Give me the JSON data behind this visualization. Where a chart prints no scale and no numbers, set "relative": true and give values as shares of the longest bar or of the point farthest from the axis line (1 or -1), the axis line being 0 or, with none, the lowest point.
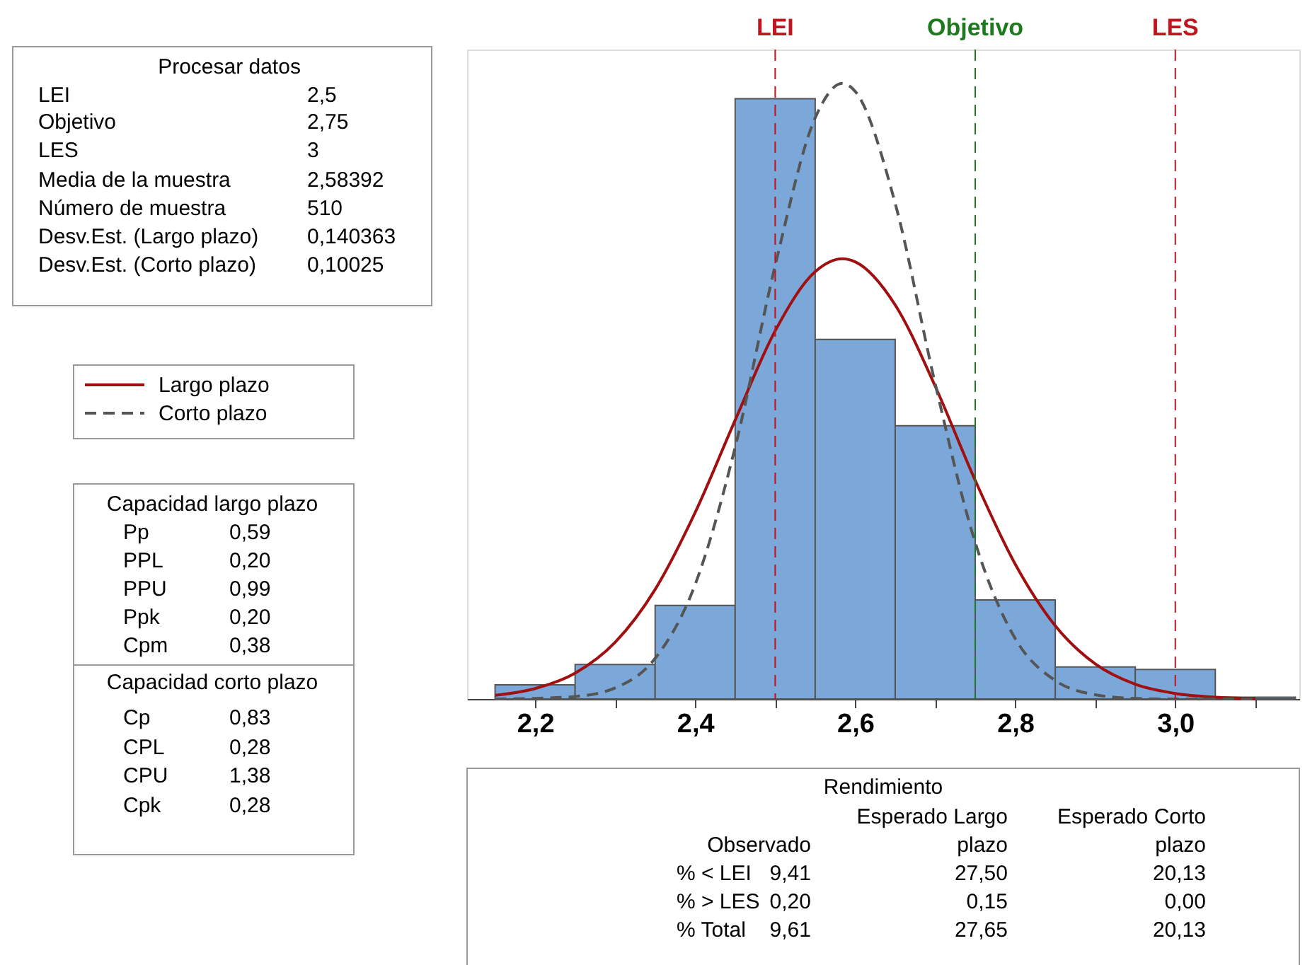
{
  "chart_data": {
    "type": "histogram",
    "relative": true,
    "bins": [
      2.15,
      2.25,
      2.35,
      2.45,
      2.55,
      2.65,
      2.75,
      2.85,
      2.95,
      3.05,
      3.15
    ],
    "values": [
      0.023,
      0.056,
      0.152,
      0.975,
      0.584,
      0.444,
      0.161,
      0.052,
      0.048,
      0.003
    ],
    "color": "#7ba7d9",
    "series": [
      {
        "name": "Largo plazo",
        "type": "line",
        "line_style": "solid",
        "color": "#a01010",
        "x": [
          2.15,
          2.2,
          2.25,
          2.3,
          2.35,
          2.4,
          2.45,
          2.5,
          2.55,
          2.584,
          2.6,
          2.65,
          2.7,
          2.75,
          2.8,
          2.85,
          2.9,
          2.95,
          3.0,
          3.05,
          3.1
        ],
        "values": [
          0.006,
          0.017,
          0.042,
          0.092,
          0.178,
          0.303,
          0.453,
          0.598,
          0.694,
          0.715,
          0.71,
          0.64,
          0.508,
          0.355,
          0.219,
          0.119,
          0.057,
          0.024,
          0.009,
          0.003,
          0.001
        ]
      },
      {
        "name": "Corto plazo",
        "type": "line",
        "line_style": "dashed",
        "color": "#555555",
        "x": [
          2.15,
          2.2,
          2.25,
          2.3,
          2.35,
          2.4,
          2.45,
          2.5,
          2.55,
          2.584,
          2.6,
          2.65,
          2.7,
          2.75,
          2.8,
          2.85,
          2.9,
          2.95,
          3.0,
          3.05,
          3.1
        ],
        "values": [
          0.0,
          0.001,
          0.004,
          0.018,
          0.066,
          0.186,
          0.409,
          0.704,
          0.944,
          1.0,
          0.987,
          0.805,
          0.512,
          0.254,
          0.098,
          0.03,
          0.007,
          0.001,
          0.0,
          0.0,
          0.0
        ]
      }
    ],
    "xlim": [
      2.115,
      3.155
    ],
    "xticks": [
      {
        "value": 2.2,
        "label": "2,2"
      },
      {
        "value": 2.3,
        "label": null
      },
      {
        "value": 2.4,
        "label": "2,4"
      },
      {
        "value": 2.5,
        "label": null
      },
      {
        "value": 2.6,
        "label": "2,6"
      },
      {
        "value": 2.7,
        "label": null
      },
      {
        "value": 2.8,
        "label": "2,8"
      },
      {
        "value": 2.9,
        "label": null
      },
      {
        "value": 3.0,
        "label": "3,0"
      },
      {
        "value": 3.1,
        "label": null
      }
    ],
    "ref_lines": [
      {
        "axis": "x",
        "value": 2.5,
        "label": "LEI",
        "color": "#c0141e",
        "line_style": "dashed"
      },
      {
        "axis": "x",
        "value": 2.75,
        "label": "Objetivo",
        "color": "#1f7a1f",
        "line_style": "dashed"
      },
      {
        "axis": "x",
        "value": 3.0,
        "label": "LES",
        "color": "#c0141e",
        "line_style": "dashed"
      }
    ],
    "legend": "left",
    "grid": false,
    "annotations": [
      "Procesar datos",
      "LEI",
      "2,5",
      "Objetivo",
      "2,75",
      "LES",
      "3",
      "Media de la muestra",
      "2,58392",
      "Número de muestra",
      "510",
      "Desv.Est. (Largo plazo)",
      "0,140363",
      "Desv.Est. (Corto plazo)",
      "0,10025",
      "Capacidad largo plazo",
      "Pp",
      "0,59",
      "PPL",
      "0,20",
      "PPU",
      "0,99",
      "Ppk",
      "0,20",
      "Cpm",
      "0,38",
      "Capacidad corto plazo",
      "Cp",
      "0,83",
      "CPL",
      "0,28",
      "CPU",
      "1,38",
      "Cpk",
      "0,28",
      "Rendimiento",
      "Observado",
      "Esperado Largo",
      "plazo",
      "Esperado Corto",
      "plazo",
      "% < LEI",
      "9,41",
      "27,50",
      "20,13",
      "% > LES",
      "0,20",
      "0,15",
      "0,00",
      "% Total",
      "9,61",
      "27,65",
      "20,13"
    ]
  }
}
